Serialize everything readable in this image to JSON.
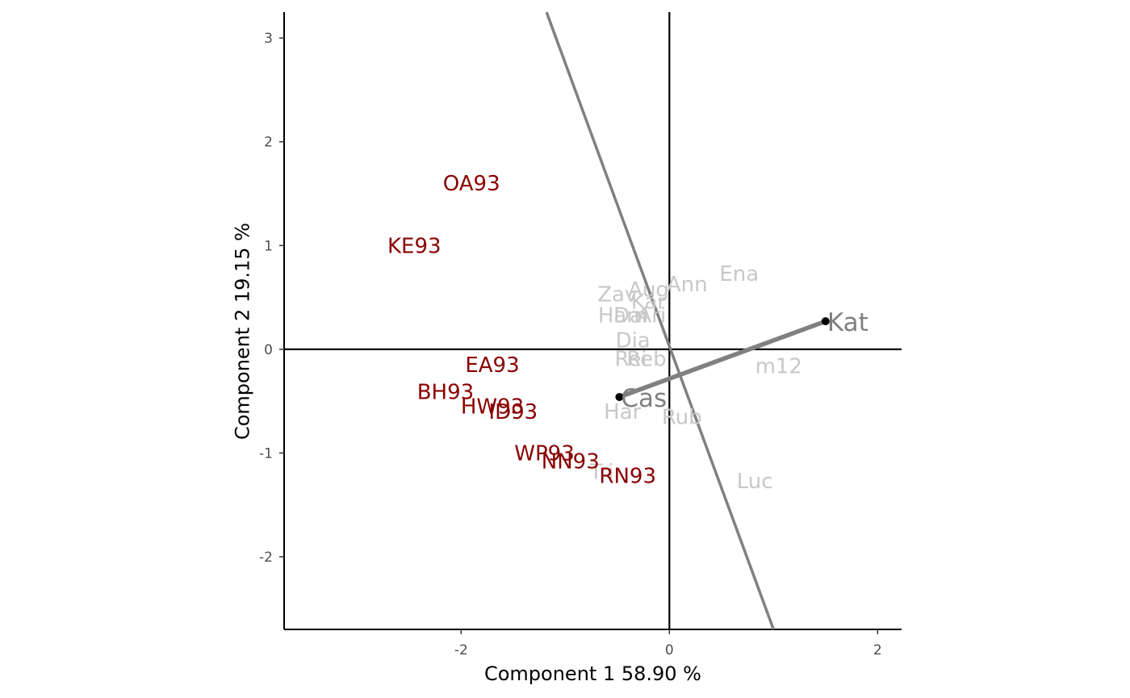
{
  "chart_data": {
    "type": "scatter",
    "title": "",
    "xlabel": "Component 1 58.90 %",
    "ylabel": "Component 2 19.15 %",
    "xlim": [
      -3.7,
      2.23
    ],
    "ylim": [
      -2.7,
      3.25
    ],
    "x_ticks": [
      -2,
      0,
      2
    ],
    "y_ticks": [
      -2,
      -1,
      0,
      1,
      2,
      3
    ],
    "grid": false,
    "reference_lines": {
      "x": 0,
      "y": 0
    },
    "colors": {
      "environment": "#8b0000",
      "genotype": "#c8c8c8",
      "highlight": "#808080",
      "axis": "#000000"
    },
    "series": [
      {
        "name": "environments",
        "color": "#8b0000",
        "points": [
          {
            "label": "OA93",
            "x": -1.9,
            "y": 1.6
          },
          {
            "label": "KE93",
            "x": -2.45,
            "y": 1.0
          },
          {
            "label": "EA93",
            "x": -1.7,
            "y": -0.15
          },
          {
            "label": "BH93",
            "x": -2.15,
            "y": -0.41
          },
          {
            "label": "HW93",
            "x": -1.7,
            "y": -0.55
          },
          {
            "label": "ID93",
            "x": -1.5,
            "y": -0.6
          },
          {
            "label": "WP93",
            "x": -1.2,
            "y": -1.0
          },
          {
            "label": "NN93",
            "x": -0.95,
            "y": -1.08
          },
          {
            "label": "RN93",
            "x": -0.4,
            "y": -1.22
          }
        ]
      },
      {
        "name": "genotypes",
        "color": "#c8c8c8",
        "points": [
          {
            "label": "Ena",
            "x": 0.67,
            "y": 0.73
          },
          {
            "label": "Ann",
            "x": 0.17,
            "y": 0.63
          },
          {
            "label": "Aug",
            "x": -0.2,
            "y": 0.58
          },
          {
            "label": "Zav",
            "x": -0.5,
            "y": 0.53
          },
          {
            "label": "Kar",
            "x": -0.2,
            "y": 0.46
          },
          {
            "label": "Ham",
            "x": -0.45,
            "y": 0.33
          },
          {
            "label": "Dal",
            "x": -0.37,
            "y": 0.33
          },
          {
            "label": "Ari",
            "x": -0.17,
            "y": 0.33
          },
          {
            "label": "Dia",
            "x": -0.35,
            "y": 0.09
          },
          {
            "label": "Rei",
            "x": -0.37,
            "y": -0.09
          },
          {
            "label": "Reb",
            "x": -0.22,
            "y": -0.09
          },
          {
            "label": "m12",
            "x": 1.05,
            "y": -0.16
          },
          {
            "label": "Har",
            "x": -0.45,
            "y": -0.6
          },
          {
            "label": "Rub",
            "x": 0.12,
            "y": -0.65
          },
          {
            "label": "Tri",
            "x": -0.65,
            "y": -1.18
          },
          {
            "label": "Luc",
            "x": 0.82,
            "y": -1.27
          }
        ]
      }
    ],
    "comparison": {
      "from": {
        "label": "Cas",
        "x": -0.48,
        "y": -0.46
      },
      "to": {
        "label": "Kat",
        "x": 1.5,
        "y": 0.27
      },
      "perpendicular_line": {
        "x1": -1.18,
        "y1": 3.25,
        "x2": 1.0,
        "y2": -2.7
      }
    }
  }
}
